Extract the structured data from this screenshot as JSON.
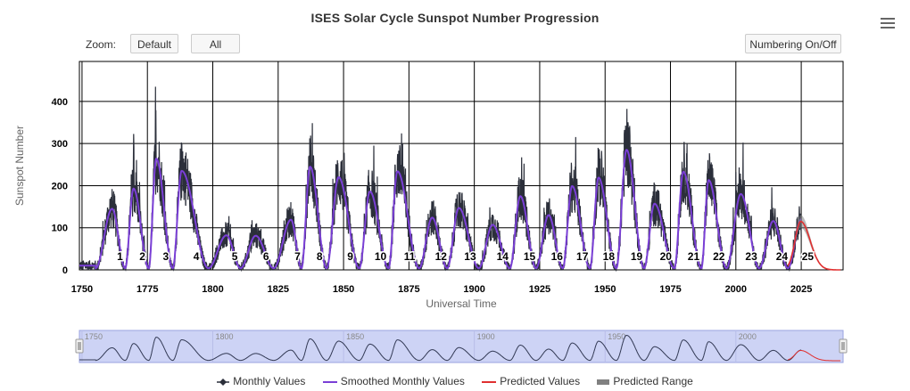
{
  "chart_data": {
    "type": "line",
    "title": "ISES Solar Cycle Sunspot Number Progression",
    "xlabel": "Universal Time",
    "ylabel": "Sunspot Number",
    "xlim": [
      1749,
      2041
    ],
    "ylim": [
      0,
      495
    ],
    "x_ticks": [
      1750,
      1775,
      1800,
      1825,
      1850,
      1875,
      1900,
      1925,
      1950,
      1975,
      2000,
      2025
    ],
    "y_ticks": [
      0,
      100,
      200,
      300,
      400
    ],
    "grid": true,
    "legend_position": "bottom",
    "cycle_numbers": [
      "1",
      "2",
      "3",
      "4",
      "5",
      "6",
      "7",
      "8",
      "9",
      "10",
      "11",
      "12",
      "13",
      "14",
      "15",
      "16",
      "17",
      "18",
      "19",
      "20",
      "21",
      "22",
      "23",
      "24",
      "25"
    ],
    "cycles": [
      {
        "min": 1755.2,
        "max": 1761.5,
        "peak": 145
      },
      {
        "min": 1766.5,
        "max": 1769.7,
        "peak": 193
      },
      {
        "min": 1775.5,
        "max": 1778.4,
        "peak": 264
      },
      {
        "min": 1784.7,
        "max": 1788.1,
        "peak": 235
      },
      {
        "min": 1798.3,
        "max": 1805.2,
        "peak": 82
      },
      {
        "min": 1810.6,
        "max": 1816.4,
        "peak": 81
      },
      {
        "min": 1823.3,
        "max": 1829.9,
        "peak": 119
      },
      {
        "min": 1833.9,
        "max": 1837.2,
        "peak": 245
      },
      {
        "min": 1843.5,
        "max": 1848.1,
        "peak": 220
      },
      {
        "min": 1856.0,
        "max": 1860.1,
        "peak": 186
      },
      {
        "min": 1867.2,
        "max": 1870.6,
        "peak": 234
      },
      {
        "min": 1878.9,
        "max": 1883.9,
        "peak": 124
      },
      {
        "min": 1889.6,
        "max": 1894.1,
        "peak": 147
      },
      {
        "min": 1901.7,
        "max": 1907.0,
        "peak": 107
      },
      {
        "min": 1913.6,
        "max": 1917.6,
        "peak": 175
      },
      {
        "min": 1923.6,
        "max": 1928.4,
        "peak": 130
      },
      {
        "min": 1933.8,
        "max": 1937.4,
        "peak": 199
      },
      {
        "min": 1944.2,
        "max": 1947.5,
        "peak": 219
      },
      {
        "min": 1954.3,
        "max": 1958.2,
        "peak": 285
      },
      {
        "min": 1964.9,
        "max": 1968.9,
        "peak": 157
      },
      {
        "min": 1976.5,
        "max": 1979.9,
        "peak": 233
      },
      {
        "min": 1986.8,
        "max": 1989.6,
        "peak": 213
      },
      {
        "min": 1996.4,
        "max": 2001.9,
        "peak": 180
      },
      {
        "min": 2008.9,
        "max": 2014.3,
        "peak": 116
      },
      {
        "min": 2019.9,
        "max": 2025.0,
        "peak": 120
      }
    ],
    "data_end": 2025.0,
    "series": [
      {
        "name": "Monthly Values",
        "color": "#2b2f3a"
      },
      {
        "name": "Smoothed Monthly Values",
        "color": "#7a3fd6"
      },
      {
        "name": "Predicted Values",
        "color": "#e03030"
      },
      {
        "name": "Predicted Range",
        "color": "#808080"
      }
    ],
    "predicted": {
      "start": 2019.9,
      "end": 2040,
      "peak_year": 2024.8,
      "peak": 115,
      "range_halfwidth": 15
    },
    "navigator": {
      "x_ticks": [
        1750,
        1800,
        1850,
        1900,
        1950,
        2000
      ]
    }
  },
  "toolbar": {
    "zoom_label": "Zoom:",
    "default_label": "Default",
    "all_label": "All",
    "numbering_label": "Numbering On/Off"
  },
  "menu_icon": "hamburger-menu-icon"
}
